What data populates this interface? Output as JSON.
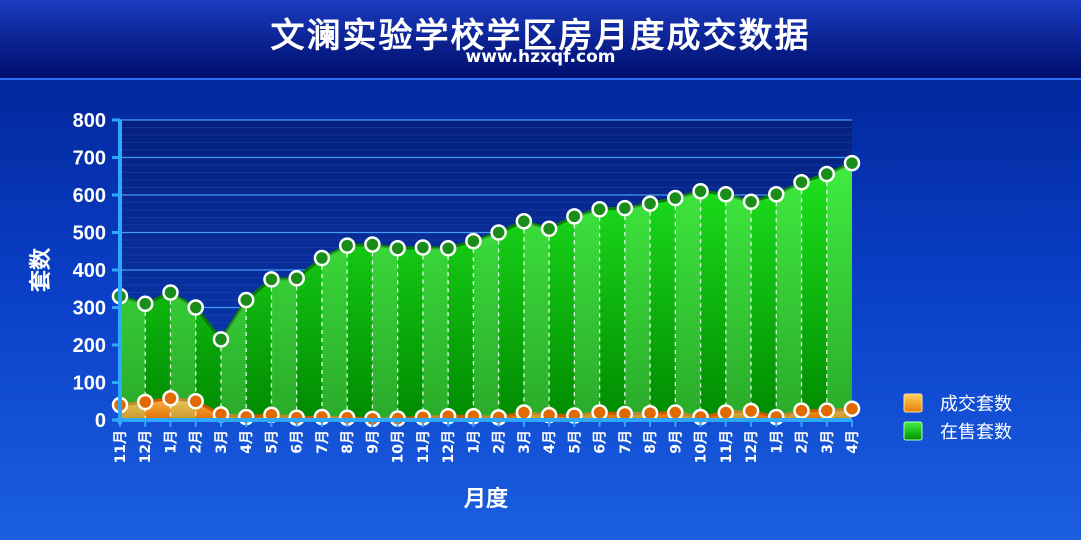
{
  "header": {
    "title": "文澜实验学校学区房月度成交数据",
    "subtitle": "www.hzxqf.com"
  },
  "chart_data": {
    "type": "area",
    "categories": [
      "11月",
      "12月",
      "1月",
      "2月",
      "3月",
      "4月",
      "5月",
      "6月",
      "7月",
      "8月",
      "9月",
      "10月",
      "11月",
      "12月",
      "1月",
      "2月",
      "3月",
      "4月",
      "5月",
      "6月",
      "7月",
      "8月",
      "9月",
      "10月",
      "11月",
      "12月",
      "1月",
      "2月",
      "3月",
      "4月"
    ],
    "series": [
      {
        "name": "在售套数",
        "color": "#17c917",
        "values": [
          330,
          310,
          340,
          300,
          215,
          320,
          375,
          378,
          432,
          465,
          468,
          458,
          460,
          458,
          477,
          500,
          530,
          510,
          543,
          562,
          565,
          577,
          592,
          610,
          602,
          582,
          602,
          634,
          656,
          685
        ]
      },
      {
        "name": "成交套数",
        "color": "#f08a10",
        "values": [
          40,
          48,
          58,
          50,
          15,
          8,
          14,
          6,
          8,
          6,
          3,
          4,
          7,
          10,
          10,
          7,
          20,
          13,
          12,
          20,
          16,
          18,
          20,
          8,
          20,
          24,
          8,
          25,
          25,
          30
        ]
      }
    ],
    "xlabel": "月度",
    "ylabel": "套数",
    "ylim": [
      0,
      800
    ],
    "yticks": [
      "0",
      "100",
      "200",
      "300",
      "400",
      "500",
      "600",
      "700",
      "800"
    ],
    "grid": true,
    "legend_position": "right"
  }
}
